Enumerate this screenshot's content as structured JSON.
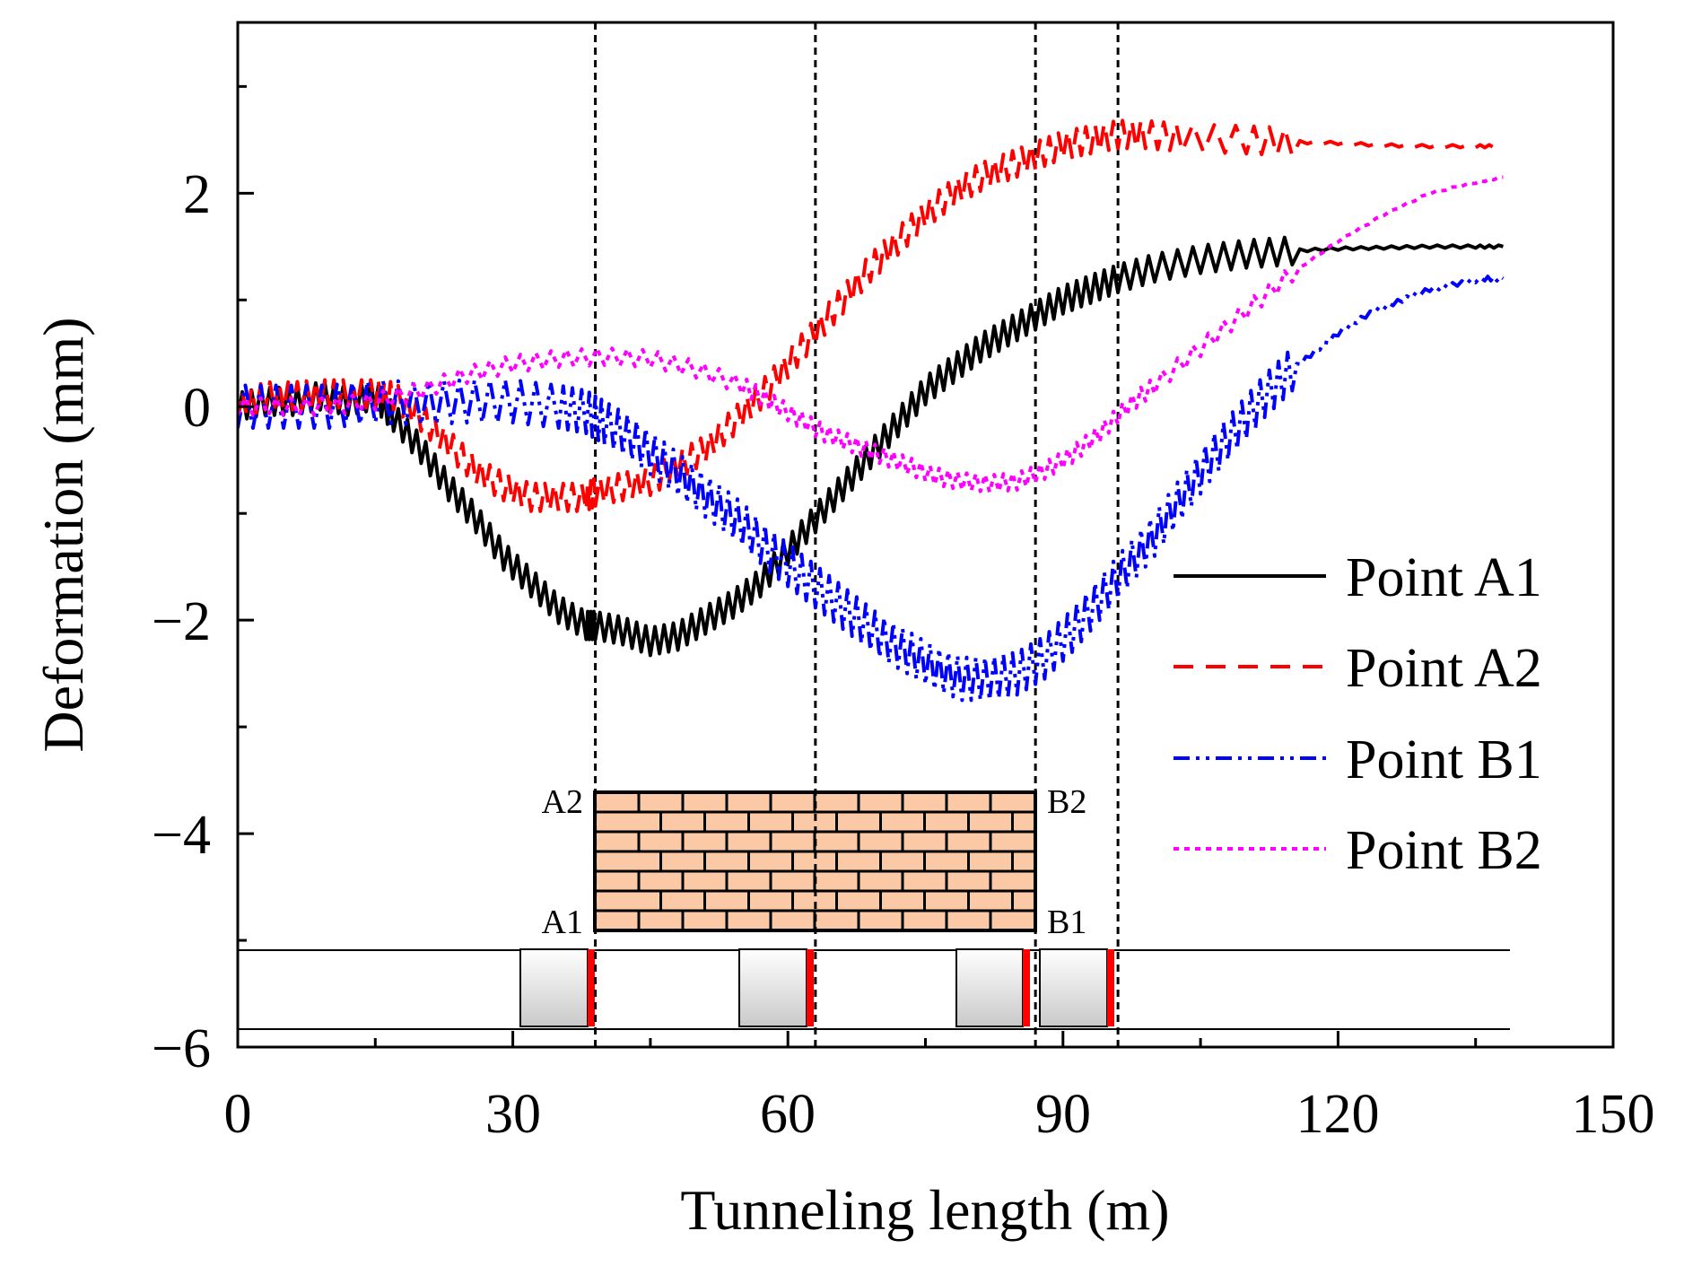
{
  "chart_data": {
    "type": "line",
    "xlabel": "Tunneling length (m)",
    "ylabel": "Deformation (mm)",
    "xlim": [
      0,
      150
    ],
    "ylim": [
      -6,
      3.6
    ],
    "x_ticks": [
      0,
      30,
      60,
      90,
      120,
      150
    ],
    "x_tick_labels": [
      "0",
      "30",
      "60",
      "90",
      "120",
      "150"
    ],
    "y_ticks": [
      -6,
      -4,
      -2,
      0,
      2
    ],
    "y_tick_labels": [
      "−6",
      "−4",
      "−2",
      "0",
      "2"
    ],
    "grid": false,
    "legend_position": "right",
    "reference_lines_x": [
      39,
      63,
      87,
      96
    ],
    "series": [
      {
        "name": "Point A1",
        "color": "#000000",
        "dash": "solid",
        "x": [
          0,
          3,
          6,
          9,
          12,
          15,
          17,
          20,
          23,
          26,
          29,
          32,
          35,
          38,
          39,
          42,
          45,
          48,
          51,
          54,
          57,
          60,
          63,
          66,
          69,
          72,
          75,
          78,
          81,
          84,
          87,
          90,
          93,
          96,
          100,
          105,
          110,
          115,
          120,
          125,
          130,
          135,
          138
        ],
        "y": [
          0,
          0.05,
          0.05,
          0.1,
          0.05,
          0.1,
          -0.1,
          -0.4,
          -0.75,
          -1.05,
          -1.4,
          -1.65,
          -1.9,
          -2.05,
          -2.05,
          -2.1,
          -2.2,
          -2.15,
          -2.0,
          -1.85,
          -1.65,
          -1.35,
          -1.05,
          -0.75,
          -0.45,
          -0.15,
          0.15,
          0.35,
          0.55,
          0.7,
          0.85,
          1.0,
          1.1,
          1.2,
          1.3,
          1.38,
          1.43,
          1.46,
          1.48,
          1.49,
          1.5,
          1.5,
          1.5
        ]
      },
      {
        "name": "Point A2",
        "color": "#ff0000",
        "dash": "dashed",
        "x": [
          0,
          3,
          6,
          9,
          12,
          15,
          17,
          20,
          23,
          26,
          29,
          32,
          35,
          38,
          39,
          42,
          45,
          48,
          51,
          54,
          57,
          60,
          63,
          66,
          69,
          72,
          75,
          78,
          81,
          84,
          87,
          90,
          93,
          96,
          99,
          103,
          110,
          115,
          120,
          125,
          130,
          135,
          138
        ],
        "y": [
          0,
          0.1,
          0.1,
          0.12,
          0.12,
          0.12,
          0.1,
          -0.1,
          -0.35,
          -0.6,
          -0.75,
          -0.85,
          -0.85,
          -0.85,
          -0.8,
          -0.75,
          -0.7,
          -0.55,
          -0.4,
          -0.15,
          0.1,
          0.4,
          0.7,
          1.0,
          1.3,
          1.55,
          1.8,
          2.0,
          2.15,
          2.25,
          2.35,
          2.45,
          2.5,
          2.55,
          2.55,
          2.52,
          2.5,
          2.48,
          2.47,
          2.45,
          2.44,
          2.44,
          2.44
        ]
      },
      {
        "name": "Point B1",
        "color": "#0000ff",
        "dash": "dashdotdot",
        "x": [
          0,
          5,
          10,
          15,
          20,
          25,
          30,
          35,
          38,
          40,
          43,
          46,
          49,
          52,
          55,
          58,
          61,
          64,
          67,
          70,
          73,
          76,
          79,
          82,
          85,
          88,
          91,
          94,
          97,
          100,
          103,
          106,
          109,
          112,
          115,
          118,
          121,
          124,
          127,
          130,
          133,
          136,
          138
        ],
        "y": [
          0,
          0,
          0,
          0.05,
          0.03,
          0.05,
          0.05,
          0,
          -0.05,
          -0.15,
          -0.3,
          -0.5,
          -0.7,
          -0.9,
          -1.1,
          -1.35,
          -1.55,
          -1.75,
          -1.95,
          -2.15,
          -2.3,
          -2.45,
          -2.55,
          -2.55,
          -2.5,
          -2.35,
          -2.1,
          -1.8,
          -1.5,
          -1.2,
          -0.85,
          -0.5,
          -0.2,
          0.1,
          0.35,
          0.55,
          0.75,
          0.9,
          1.0,
          1.1,
          1.15,
          1.2,
          1.2
        ]
      },
      {
        "name": "Point B2",
        "color": "#ff00ff",
        "dash": "dotted",
        "x": [
          0,
          5,
          10,
          15,
          20,
          25,
          30,
          35,
          40,
          45,
          50,
          55,
          58,
          61,
          64,
          67,
          70,
          73,
          76,
          79,
          82,
          85,
          88,
          91,
          94,
          97,
          100,
          105,
          110,
          115,
          120,
          125,
          130,
          135,
          138
        ],
        "y": [
          0,
          0,
          0,
          0.05,
          0.15,
          0.3,
          0.4,
          0.45,
          0.47,
          0.45,
          0.35,
          0.2,
          0.05,
          -0.1,
          -0.25,
          -0.35,
          -0.45,
          -0.55,
          -0.65,
          -0.7,
          -0.72,
          -0.7,
          -0.6,
          -0.45,
          -0.25,
          0,
          0.2,
          0.55,
          0.9,
          1.25,
          1.55,
          1.8,
          2.0,
          2.1,
          2.15
        ]
      }
    ],
    "diagram_labels": [
      "A2",
      "B2",
      "A1",
      "B1"
    ]
  }
}
